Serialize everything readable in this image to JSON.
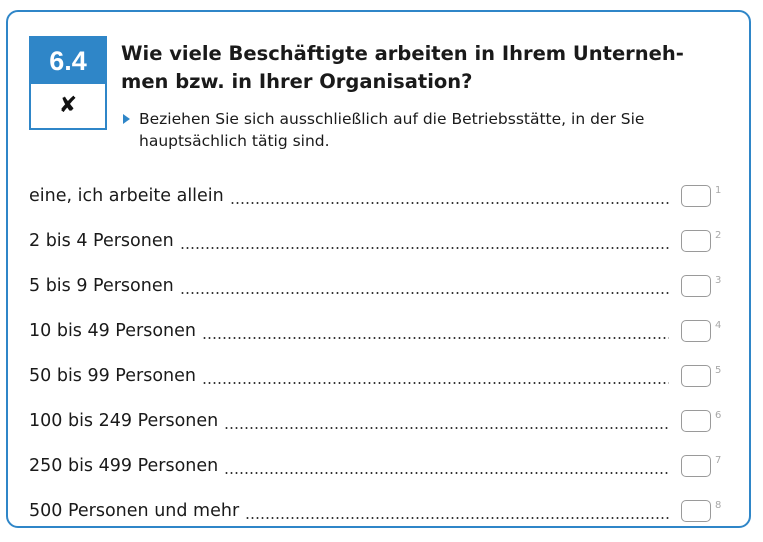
{
  "question": {
    "number": "6.4",
    "mark": "✘",
    "title": "Wie viele Beschäftigte arbeiten in Ihrem Unterneh-men bzw. in Ihrer Organisation?",
    "hint": "Beziehen Sie sich ausschließlich auf die Betriebsstätte, in der Sie hauptsächlich tätig sind."
  },
  "options": [
    {
      "label": "eine, ich arbeite allein",
      "code": "1"
    },
    {
      "label": "2 bis 4 Personen",
      "code": "2"
    },
    {
      "label": "5 bis 9 Personen",
      "code": "3"
    },
    {
      "label": "10 bis 49 Personen",
      "code": "4"
    },
    {
      "label": "50 bis 99 Personen",
      "code": "5"
    },
    {
      "label": "100 bis 249 Personen",
      "code": "6"
    },
    {
      "label": "250 bis 499 Personen",
      "code": "7"
    },
    {
      "label": "500 Personen und mehr",
      "code": "8"
    }
  ],
  "colors": {
    "accent": "#2f86c8",
    "checkbox_border": "#9a9a9a",
    "code_text": "#a8a8a8"
  }
}
